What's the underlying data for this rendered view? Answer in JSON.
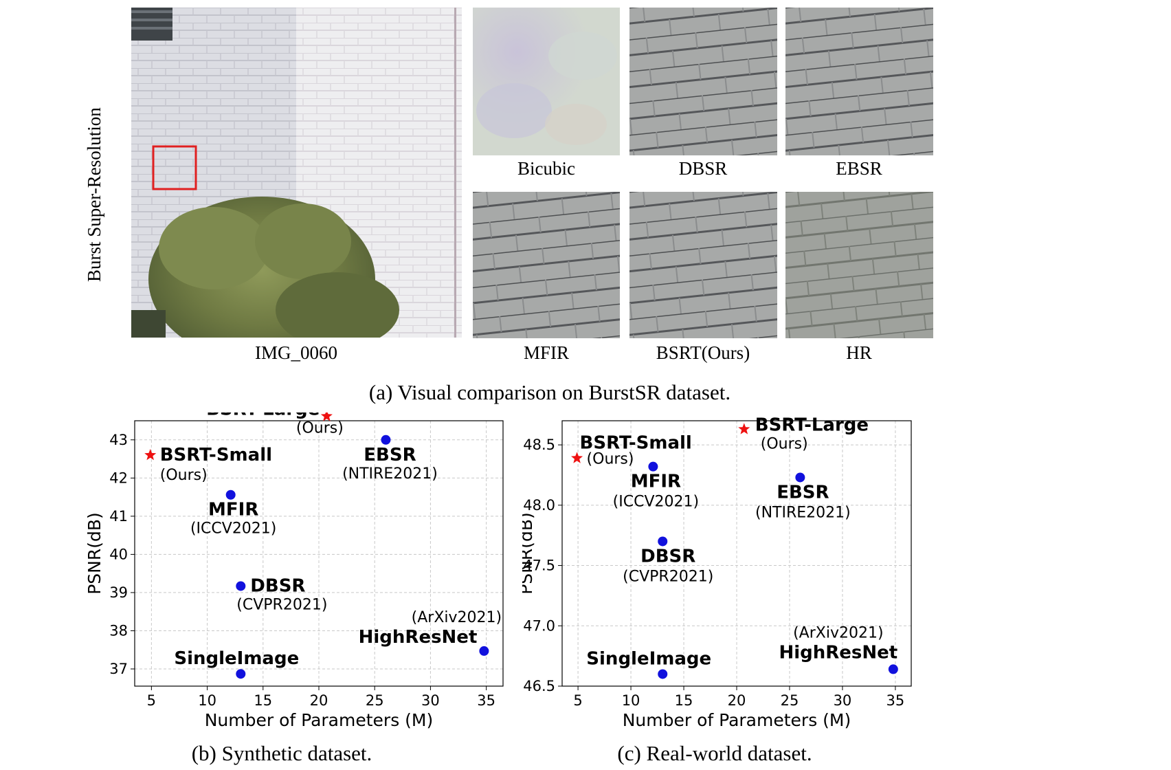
{
  "figure": {
    "row_label": "Burst Super-Resolution",
    "main_image_label": "IMG_0060",
    "crops": [
      {
        "label": "Bicubic"
      },
      {
        "label": "DBSR"
      },
      {
        "label": "EBSR"
      },
      {
        "label": "MFIR"
      },
      {
        "label": "BSRT(Ours)"
      },
      {
        "label": "HR"
      }
    ],
    "caption_a": "(a) Visual comparison on BurstSR dataset.",
    "caption_b": "(b) Synthetic dataset.",
    "caption_c": "(c) Real-world dataset.",
    "colors": {
      "ours": "#ee1111",
      "others": "#1111dd",
      "crop_box": "#e02020"
    }
  },
  "chart_data": [
    {
      "type": "scatter",
      "title": "",
      "xlabel": "Number of Parameters (M)",
      "ylabel": "PSNR(dB)",
      "xlim": [
        3.5,
        36.5
      ],
      "ylim": [
        36.55,
        43.5
      ],
      "xticks": [
        5,
        10,
        15,
        20,
        25,
        30,
        35
      ],
      "yticks": [
        37,
        38,
        39,
        40,
        41,
        42,
        43
      ],
      "grid": true,
      "points": [
        {
          "name": "BSRT-Large",
          "venue": "(Ours)",
          "x": 20.7,
          "y": 43.62,
          "marker": "star"
        },
        {
          "name": "BSRT-Small",
          "venue": "(Ours)",
          "x": 4.9,
          "y": 42.6,
          "marker": "star"
        },
        {
          "name": "EBSR",
          "venue": "(NTIRE2021)",
          "x": 26.0,
          "y": 43.0,
          "marker": "circle"
        },
        {
          "name": "MFIR",
          "venue": "(ICCV2021)",
          "x": 12.1,
          "y": 41.56,
          "marker": "circle"
        },
        {
          "name": "DBSR",
          "venue": "(CVPR2021)",
          "x": 13.0,
          "y": 39.17,
          "marker": "circle"
        },
        {
          "name": "HighResNet",
          "venue": "(ArXiv2021)",
          "x": 34.8,
          "y": 37.47,
          "marker": "circle"
        },
        {
          "name": "SingleImage",
          "venue": "",
          "x": 13.0,
          "y": 36.87,
          "marker": "circle"
        }
      ]
    },
    {
      "type": "scatter",
      "title": "",
      "xlabel": "Number of Parameters (M)",
      "ylabel": "PSNR(dB)",
      "xlim": [
        3.5,
        36.5
      ],
      "ylim": [
        46.5,
        48.7
      ],
      "xticks": [
        5,
        10,
        15,
        20,
        25,
        30,
        35
      ],
      "yticks": [
        46.5,
        47.0,
        47.5,
        48.0,
        48.5
      ],
      "ytick_labels": [
        "46.5",
        "47.0",
        "47.5",
        "48.0",
        "48.5"
      ],
      "grid": true,
      "points": [
        {
          "name": "BSRT-Large",
          "venue": "(Ours)",
          "x": 20.7,
          "y": 48.63,
          "marker": "star"
        },
        {
          "name": "BSRT-Small",
          "venue": "(Ours)",
          "x": 4.9,
          "y": 48.39,
          "marker": "star"
        },
        {
          "name": "MFIR",
          "venue": "(ICCV2021)",
          "x": 12.1,
          "y": 48.32,
          "marker": "circle"
        },
        {
          "name": "EBSR",
          "venue": "(NTIRE2021)",
          "x": 26.0,
          "y": 48.23,
          "marker": "circle"
        },
        {
          "name": "DBSR",
          "venue": "(CVPR2021)",
          "x": 13.0,
          "y": 47.7,
          "marker": "circle"
        },
        {
          "name": "SingleImage",
          "venue": "",
          "x": 13.0,
          "y": 46.6,
          "marker": "circle"
        },
        {
          "name": "HighResNet",
          "venue": "(ArXiv2021)",
          "x": 34.8,
          "y": 46.64,
          "marker": "circle"
        }
      ]
    }
  ]
}
